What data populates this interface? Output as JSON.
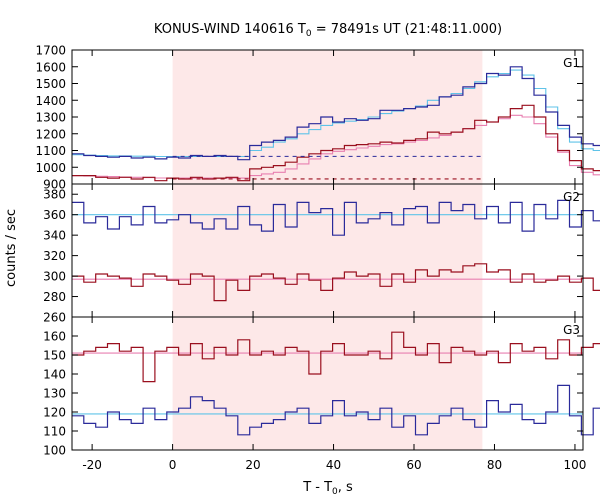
{
  "chart_data": {
    "type": "line",
    "title_main": "KONUS-WIND 140616 T",
    "title_sub": "0",
    "title_rest": " = 78491s UT (21:48:11.000)",
    "xlabel_main": "T - T",
    "xlabel_sub": "0",
    "xlabel_rest": ", s",
    "ylabel": "counts / sec",
    "xlim": [
      -25,
      102
    ],
    "x_ticks": [
      -20,
      0,
      20,
      40,
      60,
      80,
      100
    ],
    "x_tick_labels": [
      "-20",
      "0",
      "20",
      "40",
      "60",
      "80",
      "100"
    ],
    "shaded_region": [
      0,
      77
    ],
    "colors": {
      "shade": "#fde8e8",
      "blue": "#2a2a9a",
      "red": "#9a0f1e",
      "lightblue": "#5fc3e8",
      "pink": "#e87fb0"
    },
    "panels": [
      {
        "label": "G1",
        "ylim": [
          900,
          1700
        ],
        "y_ticks": [
          900,
          1000,
          1100,
          1200,
          1300,
          1400,
          1500,
          1600,
          1700
        ],
        "y_tick_labels": [
          "900",
          "1000",
          "1100",
          "1200",
          "1300",
          "1400",
          "1500",
          "1600",
          "1700"
        ],
        "step_series": [
          {
            "role": "blue-high",
            "x0": -25,
            "dx": 2.944,
            "values": [
              1080,
              1070,
              1065,
              1060,
              1065,
              1055,
              1060,
              1050,
              1060,
              1055,
              1070,
              1065,
              1070,
              1065,
              1045,
              1130,
              1150,
              1160,
              1180,
              1240,
              1260,
              1300,
              1270,
              1290,
              1280,
              1290,
              1340,
              1340,
              1350,
              1360,
              1370,
              1420,
              1430,
              1480,
              1500,
              1560,
              1550,
              1600,
              1530,
              1430,
              1330,
              1250,
              1180,
              1140,
              1130,
              1120,
              1140,
              1110,
              1125,
              1130,
              1130,
              1140,
              1090,
              1090,
              1100,
              1095,
              1090,
              1080,
              1095,
              1085,
              1090,
              1080,
              1085
            ]
          },
          {
            "role": "red-high",
            "x0": -25,
            "dx": 2.944,
            "values": [
              950,
              950,
              940,
              935,
              940,
              930,
              940,
              920,
              935,
              930,
              940,
              930,
              935,
              940,
              920,
              990,
              1000,
              1010,
              1030,
              1060,
              1080,
              1100,
              1110,
              1130,
              1135,
              1140,
              1150,
              1145,
              1160,
              1170,
              1210,
              1200,
              1210,
              1230,
              1280,
              1270,
              1300,
              1350,
              1370,
              1300,
              1200,
              1100,
              1040,
              990,
              980,
              965,
              990,
              970,
              975,
              970,
              970,
              990,
              950,
              950,
              945,
              950,
              930,
              945,
              940,
              950,
              930,
              940,
              930
            ]
          }
        ],
        "model_series": [
          {
            "role": "lightblue-model",
            "x0": -25,
            "dx": 2.944,
            "values": [
              1075,
              1072,
              1070,
              1068,
              1068,
              1066,
              1066,
              1064,
              1064,
              1064,
              1064,
              1064,
              1064,
              1064,
              1064,
              1100,
              1120,
              1150,
              1170,
              1200,
              1225,
              1250,
              1265,
              1275,
              1285,
              1300,
              1320,
              1335,
              1350,
              1365,
              1400,
              1420,
              1440,
              1470,
              1510,
              1540,
              1560,
              1580,
              1550,
              1470,
              1360,
              1230,
              1150,
              1110,
              1100,
              1090,
              1085,
              1080,
              1080,
              1080,
              1080,
              1080,
              1070,
              1070,
              1070,
              1070,
              1070,
              1070,
              1070,
              1070,
              1070,
              1070,
              1070
            ]
          },
          {
            "role": "pink-model",
            "x0": -25,
            "dx": 2.944,
            "values": [
              950,
              948,
              946,
              944,
              942,
              940,
              938,
              936,
              935,
              935,
              935,
              935,
              935,
              935,
              935,
              950,
              960,
              970,
              990,
              1020,
              1050,
              1080,
              1095,
              1105,
              1115,
              1125,
              1135,
              1140,
              1150,
              1160,
              1175,
              1190,
              1210,
              1230,
              1250,
              1270,
              1290,
              1310,
              1300,
              1260,
              1180,
              1090,
              1010,
              970,
              955,
              950,
              948,
              946,
              945,
              945,
              945,
              945,
              942,
              942,
              942,
              942,
              942,
              942,
              942,
              942,
              942,
              942,
              942
            ]
          }
        ],
        "dashed_levels": [
          {
            "role": "blue-bg",
            "x0": 0,
            "x1": 77,
            "y": 1065
          },
          {
            "role": "red-bg",
            "x0": 0,
            "x1": 77,
            "y": 930
          }
        ]
      },
      {
        "label": "G2",
        "ylim": [
          260,
          390
        ],
        "y_ticks": [
          260,
          280,
          300,
          320,
          340,
          360,
          380
        ],
        "y_tick_labels": [
          "260",
          "280",
          "300",
          "320",
          "340",
          "360",
          "380"
        ],
        "step_series": [
          {
            "role": "blue",
            "x0": -25,
            "dx": 2.944,
            "values": [
              372,
              352,
              358,
              346,
              358,
              350,
              368,
              352,
              355,
              360,
              352,
              346,
              356,
              346,
              368,
              350,
              344,
              370,
              348,
              372,
              362,
              366,
              340,
              372,
              352,
              356,
              362,
              350,
              366,
              368,
              352,
              372,
              364,
              370,
              356,
              368,
              352,
              372,
              344,
              370,
              356,
              374,
              348,
              364,
              354,
              354,
              346,
              372,
              352,
              360,
              364,
              356,
              362,
              354,
              360,
              350,
              364,
              346,
              374,
              354,
              372,
              342,
              366
            ]
          },
          {
            "role": "red",
            "x0": -25,
            "dx": 2.944,
            "values": [
              300,
              294,
              302,
              300,
              298,
              290,
              302,
              300,
              296,
              292,
              302,
              300,
              276,
              296,
              286,
              300,
              302,
              298,
              292,
              302,
              296,
              286,
              298,
              304,
              300,
              302,
              290,
              302,
              294,
              306,
              300,
              306,
              304,
              310,
              312,
              304,
              306,
              294,
              302,
              294,
              296,
              300,
              294,
              298,
              286,
              300,
              290,
              300,
              294,
              302,
              296,
              298,
              302,
              284,
              302,
              292,
              300,
              296,
              300,
              294,
              298,
              294,
              298
            ]
          }
        ],
        "model_series": [
          {
            "role": "lightblue-model",
            "x0": -25,
            "x1": 102,
            "y": 360
          },
          {
            "role": "pink-model",
            "x0": -25,
            "x1": 102,
            "y": 297
          }
        ],
        "dashed_levels": []
      },
      {
        "label": "G3",
        "ylim": [
          100,
          170
        ],
        "y_ticks": [
          100,
          110,
          120,
          130,
          140,
          150,
          160
        ],
        "y_tick_labels": [
          "100",
          "110",
          "120",
          "130",
          "140",
          "150",
          "160"
        ],
        "step_series": [
          {
            "role": "red",
            "x0": -25,
            "dx": 2.944,
            "values": [
              150,
              152,
              154,
              156,
              152,
              154,
              136,
              152,
              154,
              150,
              156,
              148,
              154,
              150,
              158,
              150,
              152,
              150,
              154,
              152,
              140,
              152,
              156,
              150,
              150,
              152,
              148,
              162,
              154,
              150,
              156,
              146,
              154,
              152,
              150,
              152,
              146,
              156,
              152,
              154,
              148,
              158,
              150,
              154,
              156,
              150,
              140,
              160,
              152,
              150,
              148,
              154,
              152,
              158,
              150,
              152,
              144,
              154,
              150,
              156,
              148,
              152,
              160
            ]
          },
          {
            "role": "blue",
            "x0": -25,
            "dx": 2.944,
            "values": [
              118,
              114,
              112,
              120,
              116,
              114,
              122,
              116,
              120,
              122,
              128,
              126,
              122,
              118,
              108,
              112,
              114,
              116,
              120,
              122,
              114,
              118,
              126,
              118,
              120,
              116,
              122,
              112,
              118,
              108,
              114,
              118,
              122,
              116,
              112,
              126,
              120,
              124,
              116,
              114,
              120,
              134,
              118,
              108,
              122,
              126,
              114,
              120,
              124,
              108,
              122,
              116,
              118,
              114,
              122,
              126,
              110,
              118,
              108,
              120,
              118,
              114,
              122
            ]
          }
        ],
        "model_series": [
          {
            "role": "pink-model",
            "x0": -25,
            "x1": 102,
            "y": 151
          },
          {
            "role": "lightblue-model",
            "x0": -25,
            "x1": 102,
            "y": 119
          }
        ],
        "dashed_levels": []
      }
    ]
  }
}
